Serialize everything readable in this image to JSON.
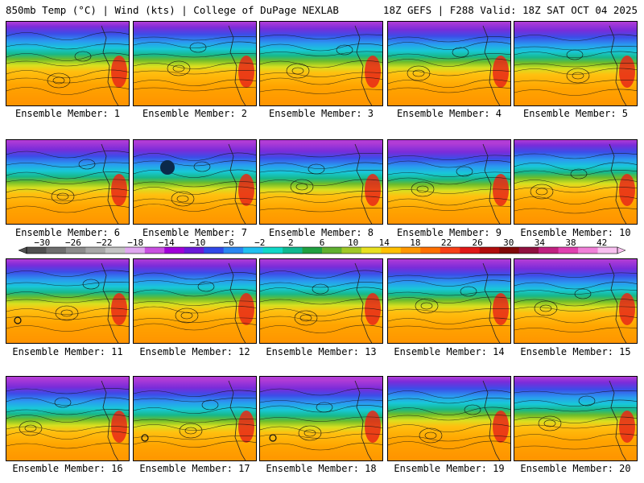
{
  "header": {
    "left": "850mb Temp (°C) | Wind (kts) | College of DuPage NEXLAB",
    "right": "18Z GEFS | F288 Valid: 18Z SAT OCT 04 2025"
  },
  "panels": [
    {
      "label": "Ensemble Member: 1"
    },
    {
      "label": "Ensemble Member: 2"
    },
    {
      "label": "Ensemble Member: 3"
    },
    {
      "label": "Ensemble Member: 4"
    },
    {
      "label": "Ensemble Member: 5"
    },
    {
      "label": "Ensemble Member: 6"
    },
    {
      "label": "Ensemble Member: 7"
    },
    {
      "label": "Ensemble Member: 8"
    },
    {
      "label": "Ensemble Member: 9"
    },
    {
      "label": "Ensemble Member: 10"
    },
    {
      "label": "Ensemble Member: 11"
    },
    {
      "label": "Ensemble Member: 12"
    },
    {
      "label": "Ensemble Member: 13"
    },
    {
      "label": "Ensemble Member: 14"
    },
    {
      "label": "Ensemble Member: 15"
    },
    {
      "label": "Ensemble Member: 16"
    },
    {
      "label": "Ensemble Member: 17"
    },
    {
      "label": "Ensemble Member: 18"
    },
    {
      "label": "Ensemble Member: 19"
    },
    {
      "label": "Ensemble Member: 20"
    }
  ],
  "chart_data": {
    "type": "heatmap",
    "title": "850mb Temp (°C) | Wind (kts)",
    "colorbar": {
      "ticks": [
        -30,
        -26,
        -22,
        -18,
        -14,
        -10,
        -6,
        -2,
        2,
        6,
        10,
        14,
        18,
        22,
        26,
        30,
        34,
        38,
        42
      ],
      "tick_labels": [
        "−30",
        "−26",
        "−22",
        "−18",
        "−14",
        "−10",
        "−6",
        "−2",
        "2",
        "6",
        "10",
        "14",
        "18",
        "22",
        "26",
        "30",
        "34",
        "38",
        "42"
      ],
      "colors": [
        "#505050",
        "#6e6e6e",
        "#8c8c8c",
        "#a8a8a8",
        "#c4c4c4",
        "#e0a8f0",
        "#c850e0",
        "#a000d8",
        "#6a1ad8",
        "#3048e8",
        "#2a86f0",
        "#20c0f0",
        "#10d8c8",
        "#10b890",
        "#20a040",
        "#60b030",
        "#a0c828",
        "#e8e020",
        "#ffc000",
        "#ff9800",
        "#ff7000",
        "#f84018",
        "#e01818",
        "#b00c0c",
        "#800808",
        "#901040",
        "#c02080",
        "#e040b0",
        "#f080d8",
        "#f8c0f0"
      ],
      "range": [
        -32,
        44
      ]
    },
    "members": [
      1,
      2,
      3,
      4,
      5,
      6,
      7,
      8,
      9,
      10,
      11,
      12,
      13,
      14,
      15,
      16,
      17,
      18,
      19,
      20
    ]
  }
}
